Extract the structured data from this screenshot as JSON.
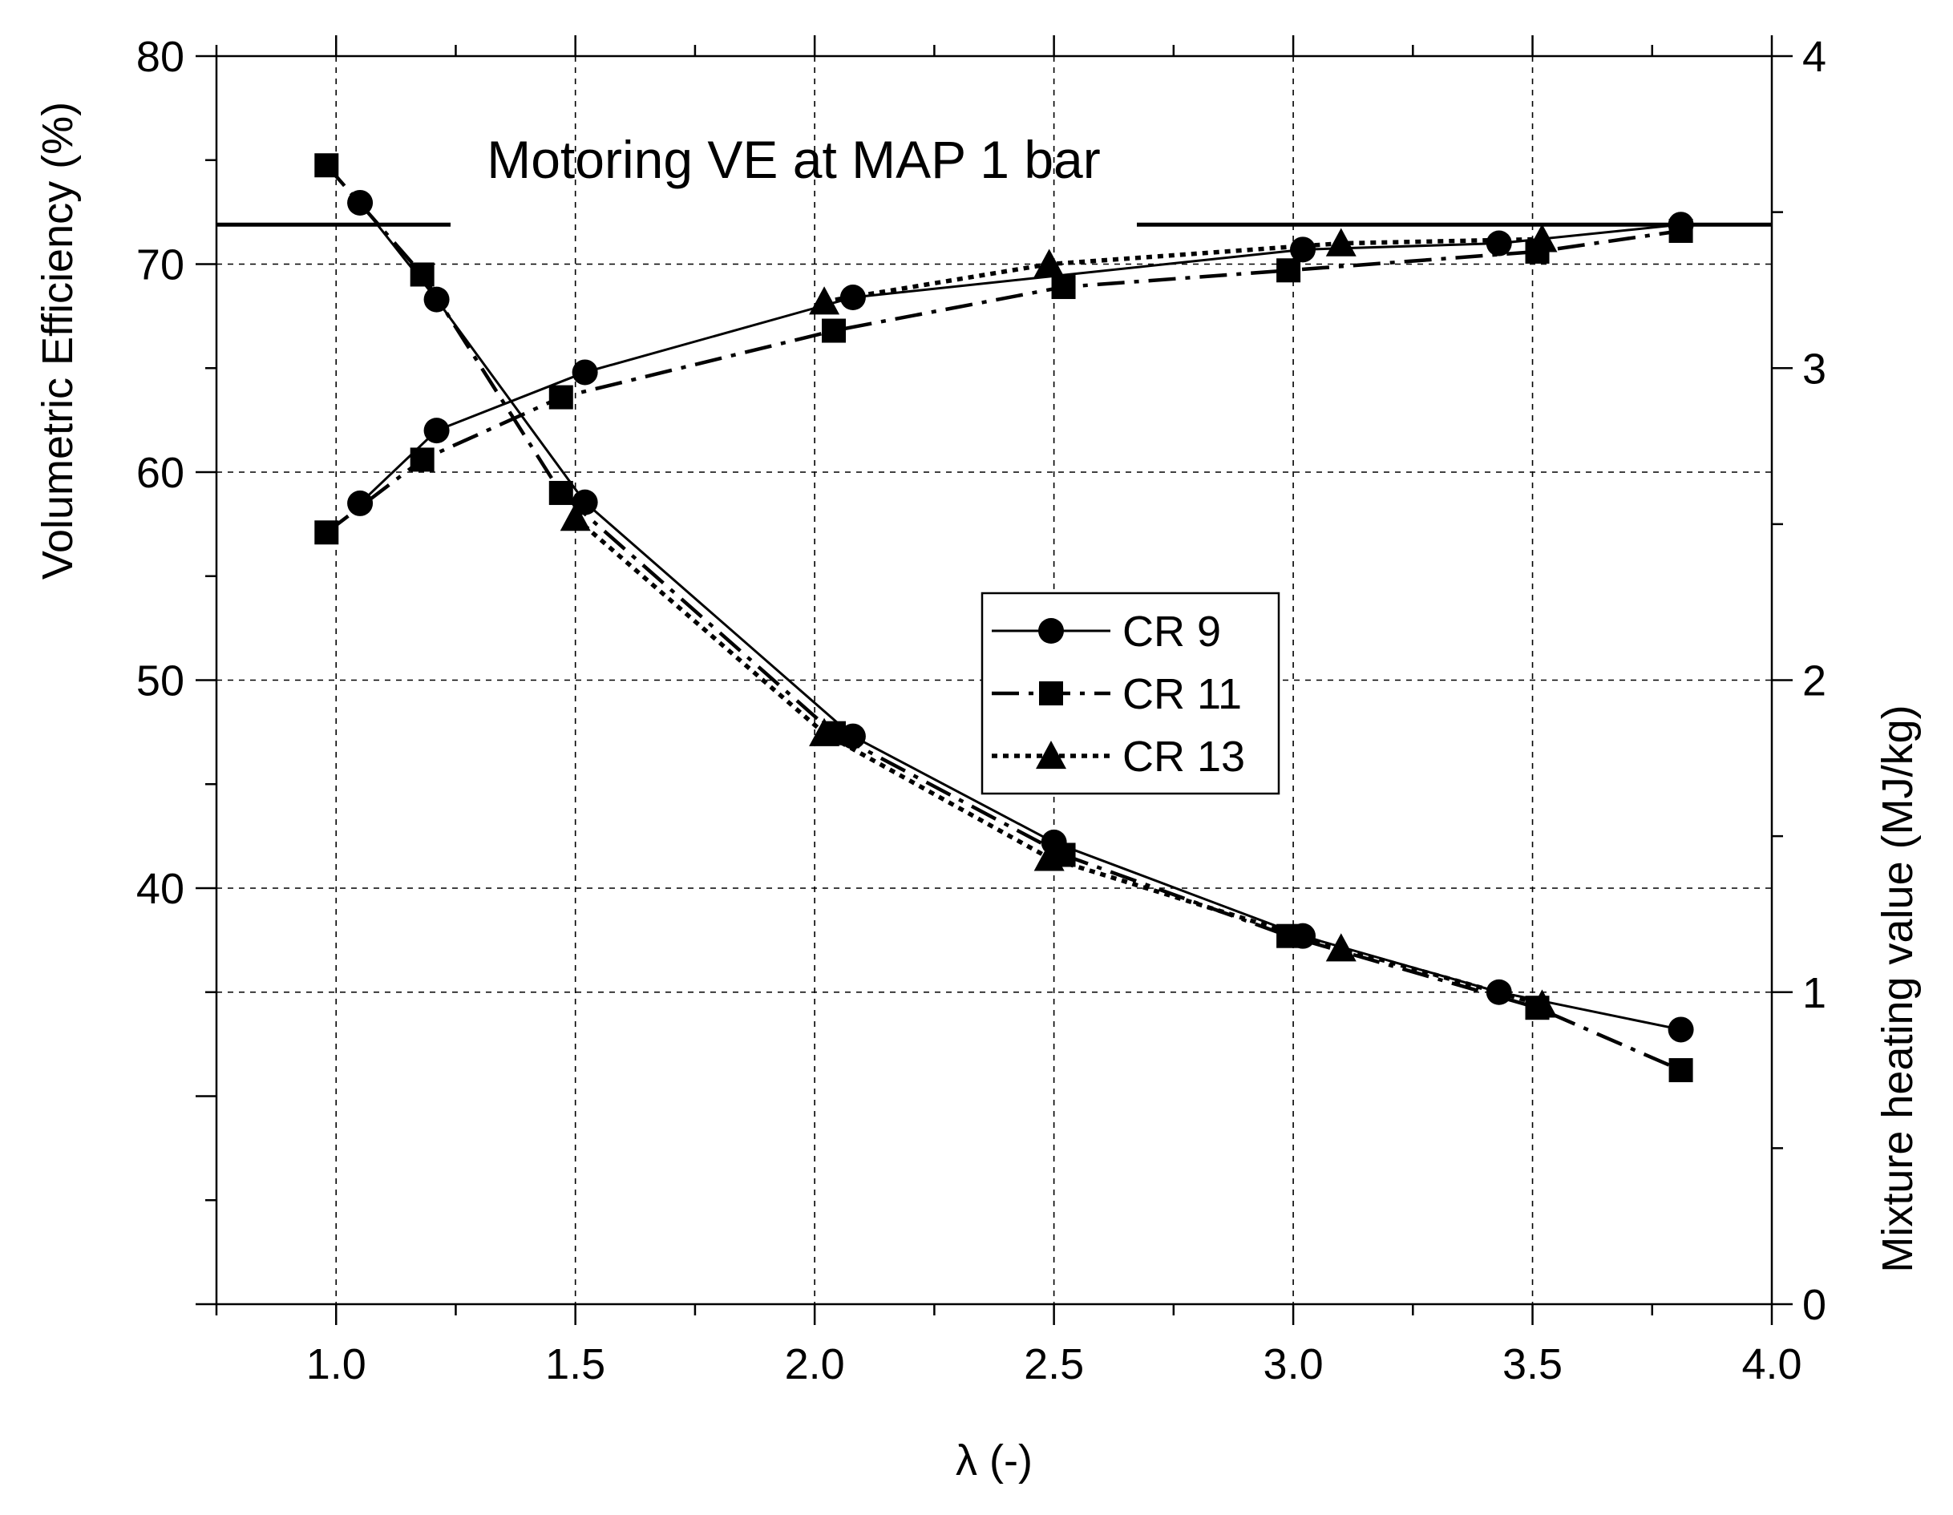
{
  "chart_data": {
    "type": "line",
    "title": "",
    "xlabel": "λ (-)",
    "ylabel_left": "Volumetric Efficiency (%)",
    "ylabel_right": "Mixture heating value (MJ/kg)",
    "xlim": [
      0.75,
      4.0
    ],
    "ylim_left": [
      20,
      80
    ],
    "ylim_right": [
      0,
      4
    ],
    "x_ticks": [
      "1.0",
      "1.5",
      "2.0",
      "2.5",
      "3.0",
      "3.5",
      "4.0"
    ],
    "y_left_ticks": [
      "40",
      "50",
      "60",
      "70",
      "80"
    ],
    "y_right_ticks": [
      "0",
      "1",
      "2",
      "3",
      "4"
    ],
    "grid": true,
    "legend_position": "center",
    "annotation": {
      "text": "Motoring VE at MAP 1 bar",
      "value": 71.9
    },
    "series": [
      {
        "name": "CR 9",
        "marker": "circle",
        "line_style": "solid",
        "ve": {
          "x": [
            1.05,
            1.21,
            1.52,
            2.08,
            3.02,
            3.43,
            3.81
          ],
          "y": [
            58.5,
            62.0,
            64.8,
            68.4,
            70.7,
            71.0,
            71.9
          ]
        },
        "heating_value": {
          "x": [
            1.05,
            1.21,
            1.52,
            2.08,
            2.5,
            3.02,
            3.43,
            3.81
          ],
          "y": [
            3.53,
            3.22,
            2.57,
            1.82,
            1.48,
            1.18,
            1.0,
            0.88
          ]
        }
      },
      {
        "name": "CR 11",
        "marker": "square",
        "line_style": "dashdot",
        "ve": {
          "x": [
            0.98,
            1.18,
            1.47,
            2.04,
            2.52,
            2.99,
            3.51,
            3.81
          ],
          "y": [
            57.1,
            60.6,
            63.6,
            66.8,
            68.9,
            69.7,
            70.6,
            71.6
          ]
        },
        "heating_value": {
          "x": [
            0.98,
            1.18,
            1.47,
            2.04,
            2.52,
            2.99,
            3.51,
            3.81
          ],
          "y": [
            3.65,
            3.3,
            2.6,
            1.83,
            1.44,
            1.18,
            0.95,
            0.75
          ]
        }
      },
      {
        "name": "CR 13",
        "marker": "triangle",
        "line_style": "dotted",
        "ve": {
          "x": [
            2.02,
            2.49,
            3.1,
            3.52
          ],
          "y": [
            68.2,
            70.0,
            71.0,
            71.2
          ]
        },
        "heating_value": {
          "x": [
            1.5,
            2.02,
            2.49,
            3.1,
            3.52
          ],
          "y": [
            2.52,
            1.83,
            1.43,
            1.14,
            0.96
          ]
        }
      }
    ]
  }
}
